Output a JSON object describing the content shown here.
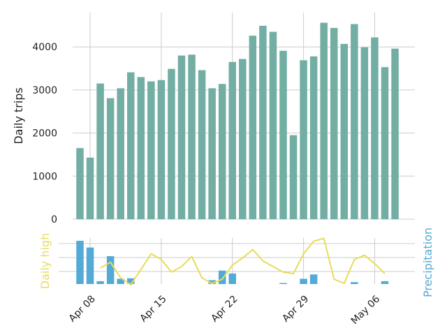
{
  "chart_data": [
    {
      "type": "bar",
      "ylabel": "Daily trips",
      "ylim": [
        0,
        4800
      ],
      "yticks": [
        0,
        1000,
        2000,
        3000,
        4000
      ],
      "grid": true,
      "colors": {
        "bars": "#72aea3",
        "grid": "#cccccc"
      },
      "x": [
        "2018-04-07",
        "2018-04-08",
        "2018-04-09",
        "2018-04-10",
        "2018-04-11",
        "2018-04-12",
        "2018-04-13",
        "2018-04-14",
        "2018-04-15",
        "2018-04-16",
        "2018-04-17",
        "2018-04-18",
        "2018-04-19",
        "2018-04-20",
        "2018-04-21",
        "2018-04-22",
        "2018-04-23",
        "2018-04-24",
        "2018-04-25",
        "2018-04-26",
        "2018-04-27",
        "2018-04-28",
        "2018-04-29",
        "2018-04-30",
        "2018-05-01",
        "2018-05-02",
        "2018-05-03",
        "2018-05-04",
        "2018-05-05",
        "2018-05-06",
        "2018-05-07",
        "2018-05-08"
      ],
      "values": [
        1650,
        1430,
        3150,
        2810,
        3040,
        3410,
        3300,
        3200,
        3230,
        3490,
        3800,
        3820,
        3460,
        3040,
        3140,
        3650,
        3720,
        4260,
        4490,
        4350,
        3910,
        1950,
        3690,
        3780,
        4560,
        4440,
        4070,
        4530,
        3990,
        4220,
        3530,
        3960
      ]
    },
    {
      "type": "line",
      "series": [
        {
          "name": "Daily high",
          "color": "#e8dc5a",
          "values": [
            null,
            null,
            56,
            60,
            49,
            44,
            null,
            66,
            62,
            53,
            57,
            64,
            49,
            45,
            48,
            58,
            63,
            69,
            61,
            57,
            53,
            52,
            66,
            75,
            77,
            48,
            45,
            62,
            65,
            59,
            52,
            null
          ]
        },
        {
          "name": "Precipitation",
          "type": "bar",
          "color": "#54aad6",
          "values": [
            0.9,
            0.76,
            0.06,
            0.58,
            0.11,
            0.12,
            0,
            0,
            0,
            0,
            0,
            0,
            0,
            0.08,
            0.28,
            0.22,
            0,
            0,
            0,
            0,
            0.01,
            0,
            0.11,
            0.2,
            0,
            0,
            0,
            0.04,
            0,
            0,
            0.06,
            0
          ]
        }
      ],
      "xtick_labels": [
        "Apr 08",
        "Apr 15",
        "Apr 22",
        "Apr 29",
        "May 06"
      ],
      "grid": true
    }
  ]
}
